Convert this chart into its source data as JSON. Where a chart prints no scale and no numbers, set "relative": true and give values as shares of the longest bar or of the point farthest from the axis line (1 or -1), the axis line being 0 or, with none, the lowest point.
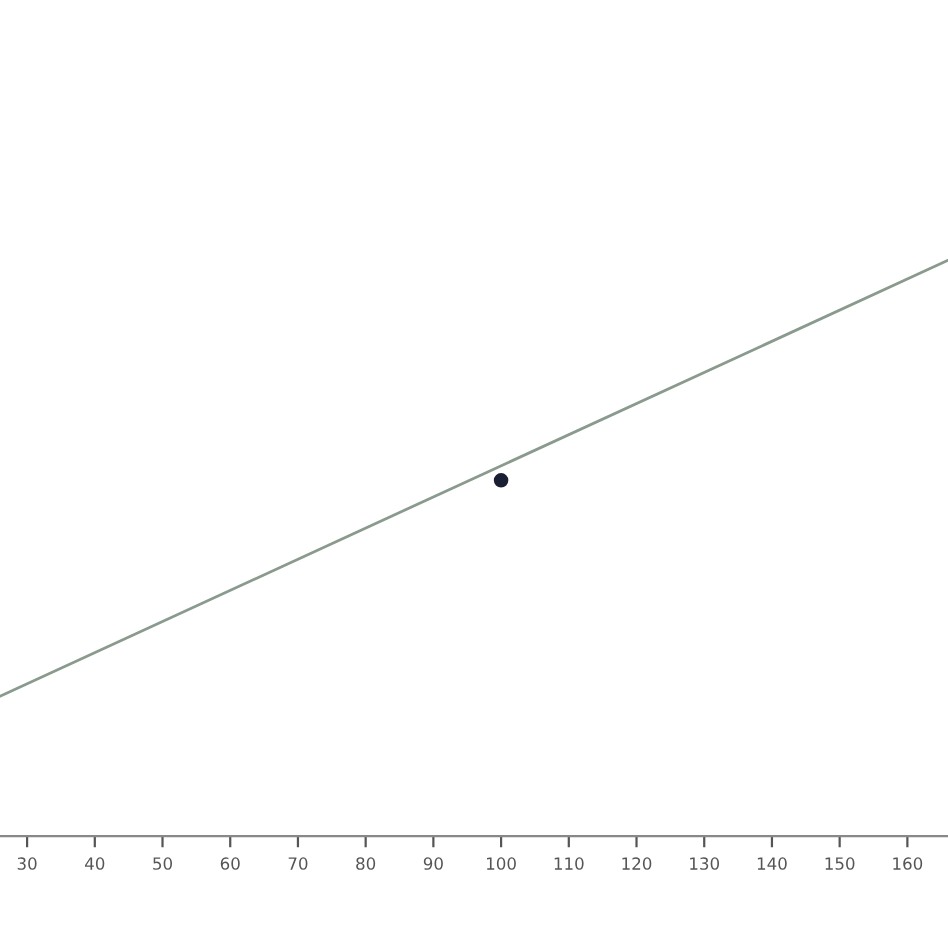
{
  "chart_data": {
    "type": "line",
    "relative": true,
    "xlim": [
      26,
      166
    ],
    "xticks": [
      30,
      40,
      50,
      60,
      70,
      80,
      90,
      100,
      110,
      120,
      130,
      140,
      150,
      160
    ],
    "series": [
      {
        "color": "#8a9a8e",
        "x": [
          26,
          166
        ],
        "values": [
          0.243,
          1
        ]
      },
      {
        "type": "scatter",
        "color": "#1a1f33",
        "x": [
          100
        ],
        "values": [
          0.618
        ]
      }
    ],
    "grid": false,
    "legend": false
  }
}
